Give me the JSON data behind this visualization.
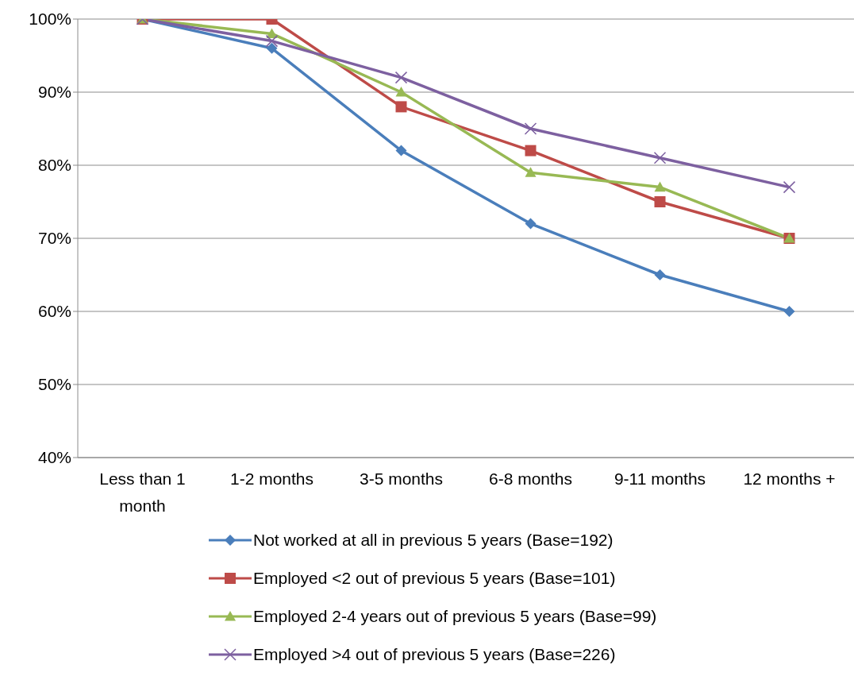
{
  "chart_data": {
    "type": "line",
    "categories": [
      "Less than 1 month",
      "1-2 months",
      "3-5 months",
      "6-8 months",
      "9-11 months",
      "12 months +"
    ],
    "series": [
      {
        "name": "Not worked at all in previous 5 years (Base=192)",
        "color": "#4a7ebb",
        "marker": "diamond",
        "values": [
          100,
          96,
          82,
          72,
          65,
          60
        ]
      },
      {
        "name": "Employed <2 out of previous 5 years (Base=101)",
        "color": "#be4b48",
        "marker": "square",
        "values": [
          100,
          100,
          88,
          82,
          75,
          70
        ]
      },
      {
        "name": "Employed 2-4 years out of previous 5 years (Base=99)",
        "color": "#98b954",
        "marker": "triangle",
        "values": [
          100,
          98,
          90,
          79,
          77,
          70
        ]
      },
      {
        "name": "Employed >4 out of previous 5 years (Base=226)",
        "color": "#7d60a0",
        "marker": "cross",
        "values": [
          100,
          97,
          92,
          85,
          81,
          77
        ]
      }
    ],
    "ylim": [
      40,
      100
    ],
    "yticks": [
      {
        "value": 40,
        "label": "40%"
      },
      {
        "value": 50,
        "label": "50%"
      },
      {
        "value": 60,
        "label": "60%"
      },
      {
        "value": 70,
        "label": "70%"
      },
      {
        "value": 80,
        "label": "80%"
      },
      {
        "value": 90,
        "label": "90%"
      },
      {
        "value": 100,
        "label": "100%"
      }
    ],
    "grid": "y",
    "legend": "bottom"
  }
}
